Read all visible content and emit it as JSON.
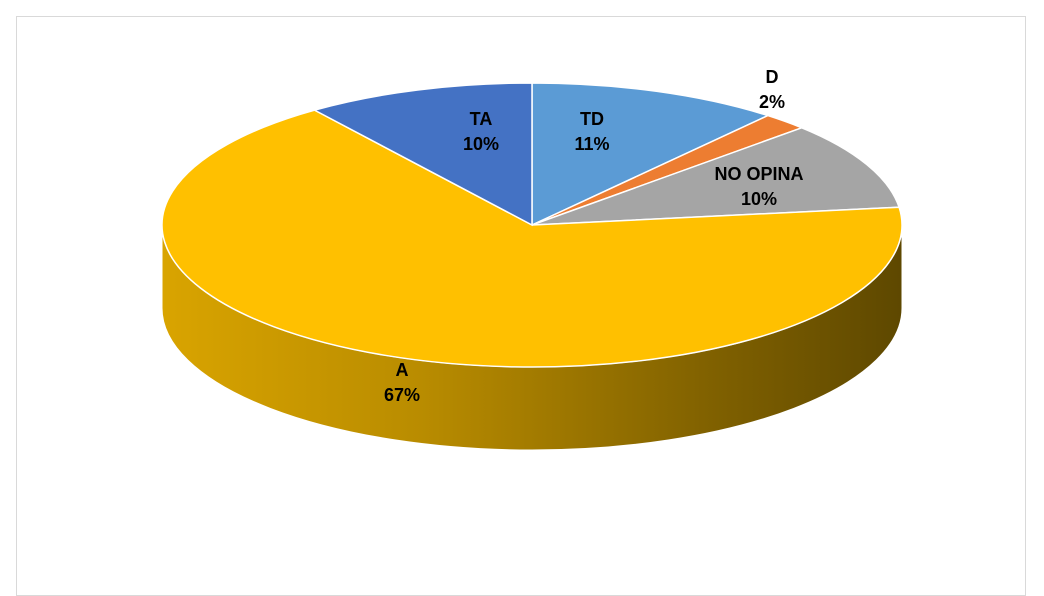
{
  "chart_data": {
    "type": "pie",
    "title": "",
    "style": "3d-tilted",
    "slices": [
      {
        "name": "TD",
        "value": 11,
        "label": "11%",
        "color": "#5B9BD5"
      },
      {
        "name": "D",
        "value": 2,
        "label": "2%",
        "color": "#ED7D31"
      },
      {
        "name": "NO OPINA",
        "value": 10,
        "label": "10%",
        "color": "#A5A5A5"
      },
      {
        "name": "A",
        "value": 67,
        "label": "67%",
        "color": "#FFC000"
      },
      {
        "name": "TA",
        "value": 10,
        "label": "10%",
        "color": "#4472C4"
      }
    ],
    "legend": "none"
  }
}
